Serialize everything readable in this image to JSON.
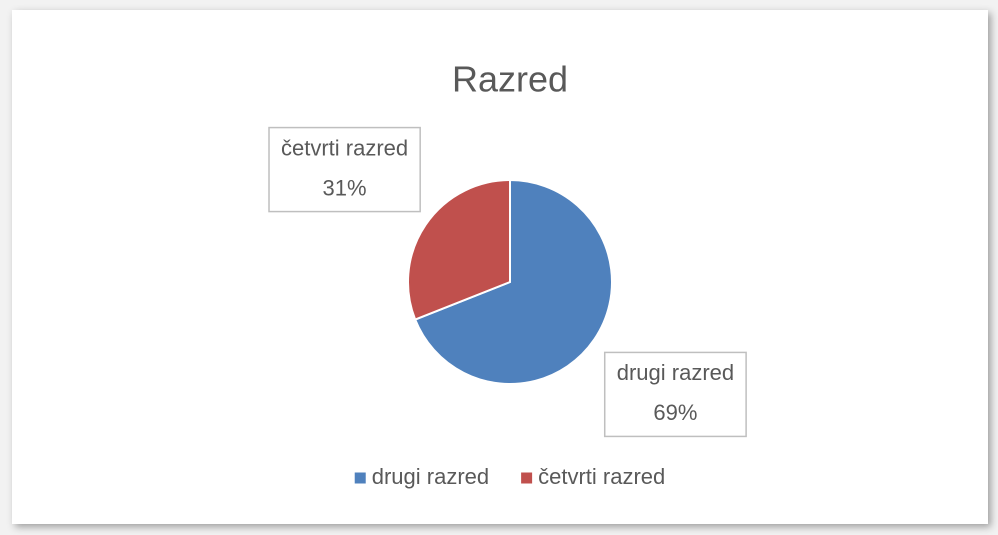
{
  "chart_data": {
    "type": "pie",
    "title": "Razred",
    "categories": [
      "drugi razred",
      "četvrti razred"
    ],
    "values": [
      69,
      31
    ],
    "value_labels": [
      "69%",
      "31%"
    ],
    "colors": [
      "#4f81bd",
      "#c0504d"
    ],
    "legend": "bottom"
  }
}
